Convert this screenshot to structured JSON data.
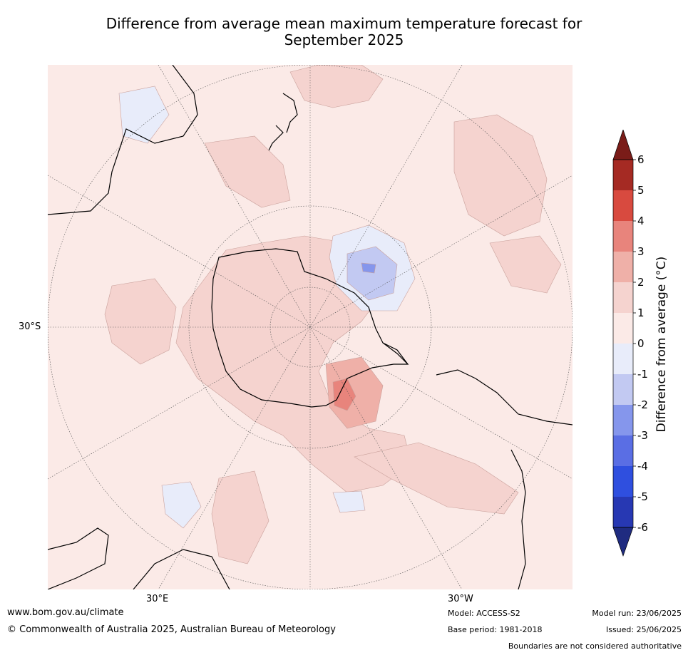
{
  "title_line1": "Difference from average mean maximum temperature forecast for",
  "title_line2": "September 2025",
  "map_labels": {
    "lat_left": "30°S",
    "lon_left": "30°E",
    "lon_right": "30°W"
  },
  "colorbar": {
    "title": "Difference from average (°C)",
    "ticks": [
      "6",
      "5",
      "4",
      "3",
      "2",
      "1",
      "0",
      "-1",
      "-2",
      "-3",
      "-4",
      "-5",
      "-6"
    ],
    "colors": [
      "#7a1c18",
      "#a52a23",
      "#d84a3f",
      "#e8847c",
      "#efb0a8",
      "#f5d3cf",
      "#fbeae7",
      "#e8ecfa",
      "#c2c9f2",
      "#8596ec",
      "#5a6ee4",
      "#2f4fdf",
      "#2738b3",
      "#1f2b80"
    ]
  },
  "footer": {
    "url": "www.bom.gov.au/climate",
    "copyright": "© Commonwealth of Australia 2025, Australian Bureau of Meteorology",
    "model": "Model: ACCESS-S2",
    "base_period": "Base period: 1981-2018",
    "model_run": "Model run: 23/06/2025",
    "issued": "Issued: 25/06/2025",
    "disclaimer": "Boundaries are not considered authoritative"
  }
}
